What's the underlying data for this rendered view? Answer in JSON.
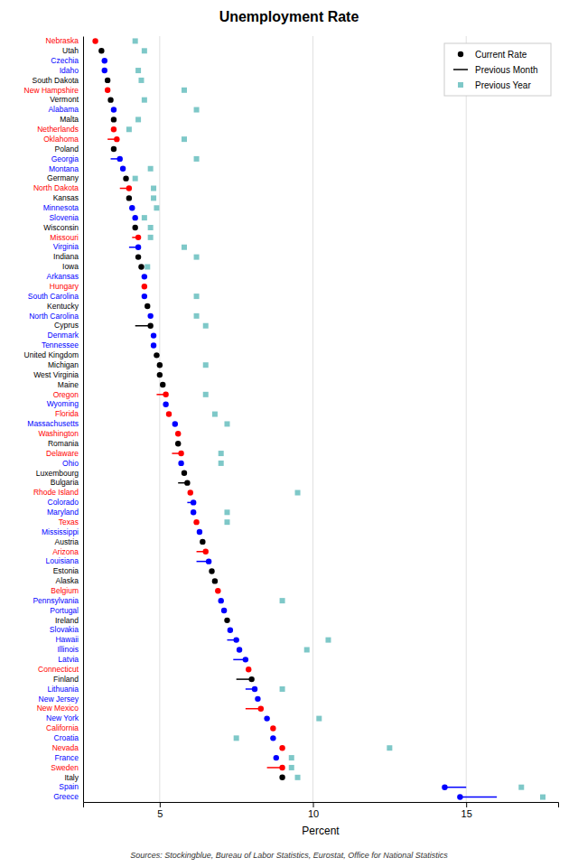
{
  "chart_data": {
    "type": "dot",
    "title": "Unemployment Rate",
    "xlabel": "Percent",
    "source": "Sources: Stockingblue, Bureau of Labor Statistics, Eurostat, Office for National Statistics",
    "orientation": "horizontal",
    "grid": true,
    "legend": "upper right",
    "xlim": [
      2.5,
      18.0
    ],
    "xticks": [
      5,
      10,
      15
    ],
    "categories": [
      "Nebraska",
      "Utah",
      "Czechia",
      "Idaho",
      "South Dakota",
      "New Hampshire",
      "Vermont",
      "Alabama",
      "Malta",
      "Netherlands",
      "Oklahoma",
      "Poland",
      "Georgia",
      "Montana",
      "Germany",
      "North Dakota",
      "Kansas",
      "Minnesota",
      "Slovenia",
      "Wisconsin",
      "Missouri",
      "Virginia",
      "Indiana",
      "Iowa",
      "Arkansas",
      "Hungary",
      "South Carolina",
      "Kentucky",
      "North Carolina",
      "Cyprus",
      "Denmark",
      "Tennessee",
      "United Kingdom",
      "Michigan",
      "West Virginia",
      "Maine",
      "Oregon",
      "Wyoming",
      "Florida",
      "Massachusetts",
      "Washington",
      "Romania",
      "Delaware",
      "Ohio",
      "Luxembourg",
      "Bulgaria",
      "Rhode Island",
      "Colorado",
      "Maryland",
      "Texas",
      "Mississippi",
      "Austria",
      "Arizona",
      "Louisiana",
      "Estonia",
      "Alaska",
      "Belgium",
      "Pennsylvania",
      "Portugal",
      "Ireland",
      "Slovakia",
      "Hawaii",
      "Illinois",
      "Latvia",
      "Connecticut",
      "Finland",
      "Lithuania",
      "New Jersey",
      "New Mexico",
      "New York",
      "California",
      "Croatia",
      "Nevada",
      "France",
      "Sweden",
      "Italy",
      "Spain",
      "Greece"
    ],
    "colors": [
      "red",
      "black",
      "blue",
      "blue",
      "black",
      "red",
      "black",
      "blue",
      "black",
      "red",
      "red",
      "black",
      "blue",
      "blue",
      "black",
      "red",
      "black",
      "blue",
      "blue",
      "black",
      "red",
      "blue",
      "black",
      "black",
      "blue",
      "red",
      "blue",
      "black",
      "blue",
      "black",
      "blue",
      "blue",
      "black",
      "black",
      "black",
      "black",
      "red",
      "blue",
      "red",
      "blue",
      "red",
      "black",
      "red",
      "blue",
      "black",
      "black",
      "red",
      "blue",
      "blue",
      "red",
      "blue",
      "black",
      "red",
      "blue",
      "black",
      "black",
      "red",
      "blue",
      "blue",
      "black",
      "blue",
      "blue",
      "blue",
      "blue",
      "red",
      "black",
      "blue",
      "blue",
      "red",
      "blue",
      "red",
      "blue",
      "red",
      "blue",
      "red",
      "black",
      "blue",
      "blue"
    ],
    "series": [
      {
        "name": "Current Rate",
        "type": "scatter",
        "marker": "circle",
        "color": "black",
        "values": [
          2.9,
          3.1,
          3.2,
          3.2,
          3.3,
          3.3,
          3.4,
          3.5,
          3.5,
          3.5,
          3.6,
          3.5,
          3.7,
          3.8,
          3.9,
          4.0,
          4.0,
          4.1,
          4.2,
          4.2,
          4.3,
          4.3,
          4.3,
          4.4,
          4.5,
          4.5,
          4.5,
          4.6,
          4.7,
          4.7,
          4.8,
          4.8,
          4.9,
          5.0,
          5.0,
          5.1,
          5.2,
          5.2,
          5.3,
          5.5,
          5.6,
          5.6,
          5.7,
          5.7,
          5.8,
          5.9,
          6.0,
          6.1,
          6.1,
          6.2,
          6.3,
          6.4,
          6.5,
          6.6,
          6.7,
          6.8,
          6.9,
          7.0,
          7.1,
          7.2,
          7.3,
          7.5,
          7.6,
          7.8,
          7.9,
          8.0,
          8.1,
          8.2,
          8.3,
          8.5,
          8.7,
          8.7,
          9.0,
          8.8,
          9.0,
          9.0,
          14.3,
          14.8
        ]
      },
      {
        "name": "Previous Month",
        "type": "line",
        "line_style": "solid",
        "color": "black",
        "values": [
          null,
          null,
          null,
          null,
          null,
          null,
          null,
          null,
          null,
          null,
          3.3,
          null,
          3.4,
          null,
          null,
          3.7,
          null,
          null,
          null,
          null,
          4.1,
          4.0,
          null,
          null,
          null,
          null,
          null,
          null,
          null,
          4.2,
          null,
          null,
          null,
          null,
          null,
          null,
          4.9,
          null,
          null,
          null,
          null,
          null,
          5.4,
          null,
          null,
          5.6,
          null,
          5.9,
          null,
          null,
          null,
          null,
          6.2,
          6.2,
          null,
          null,
          null,
          null,
          null,
          null,
          null,
          7.2,
          null,
          7.4,
          null,
          7.5,
          7.8,
          null,
          7.8,
          null,
          null,
          null,
          null,
          null,
          8.5,
          null,
          15.0,
          16.0
        ]
      },
      {
        "name": "Previous Year",
        "type": "scatter",
        "marker": "square",
        "color": "#7ec8c8",
        "values": [
          4.2,
          4.5,
          null,
          4.3,
          4.4,
          5.8,
          4.5,
          6.2,
          4.3,
          4.0,
          5.8,
          null,
          6.2,
          4.7,
          4.2,
          4.8,
          4.8,
          4.9,
          4.5,
          4.7,
          4.7,
          5.8,
          6.2,
          4.6,
          null,
          null,
          6.2,
          null,
          6.2,
          6.5,
          null,
          null,
          null,
          6.5,
          null,
          null,
          6.5,
          null,
          6.8,
          7.2,
          null,
          null,
          7.0,
          7.0,
          null,
          null,
          9.5,
          null,
          7.2,
          7.2,
          null,
          null,
          null,
          null,
          null,
          null,
          null,
          9.0,
          null,
          null,
          null,
          10.5,
          9.8,
          null,
          null,
          null,
          9.0,
          null,
          null,
          10.2,
          null,
          7.5,
          12.5,
          9.3,
          9.3,
          9.5,
          16.8,
          17.5
        ]
      }
    ]
  }
}
